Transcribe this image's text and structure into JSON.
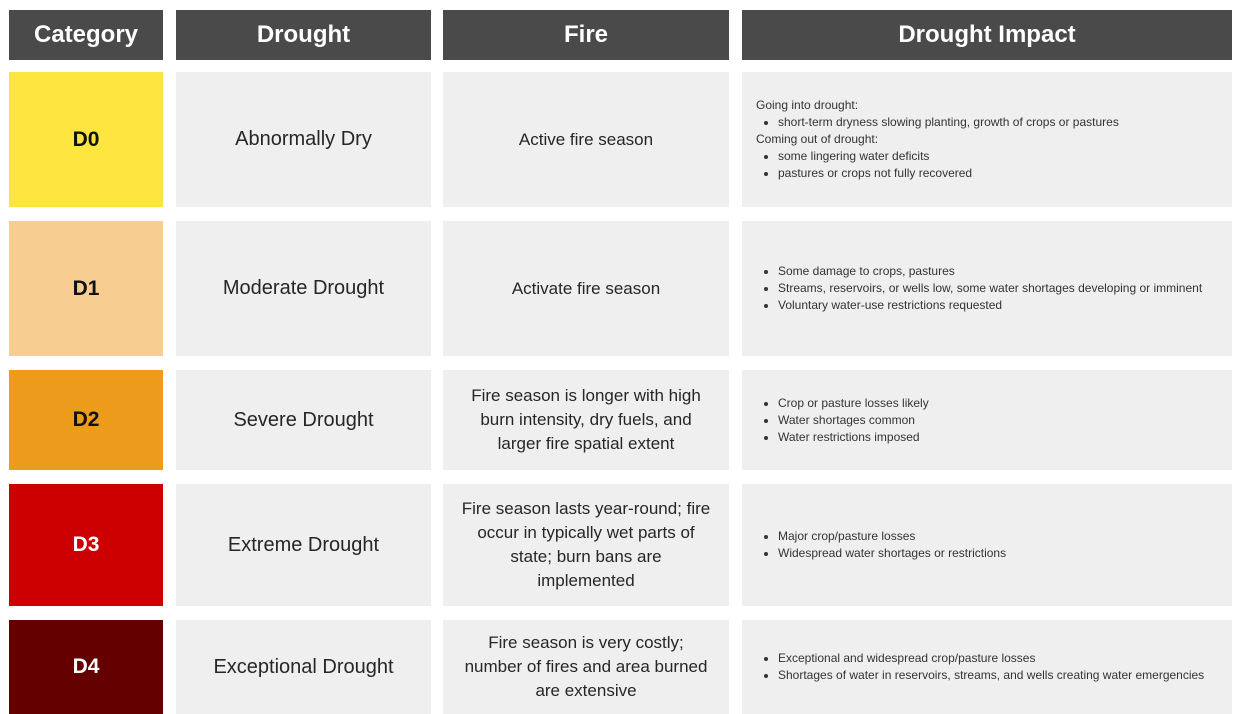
{
  "headers": {
    "category": "Category",
    "drought": "Drought",
    "fire": "Fire",
    "impact": "Drought Impact"
  },
  "rows": [
    {
      "category": "D0",
      "category_color": "#fee53f",
      "category_text_color": "#111111",
      "drought": "Abnormally Dry",
      "fire": "Active fire season",
      "impact": {
        "going_heading": "Going into drought:",
        "going_bullets": [
          "short-term dryness slowing planting, growth of crops or pastures"
        ],
        "coming_heading": "Coming out of drought:",
        "coming_bullets": [
          "some lingering water deficits",
          "pastures or crops not fully recovered"
        ]
      }
    },
    {
      "category": "D1",
      "category_color": "#f8cd91",
      "category_text_color": "#111111",
      "drought": "Moderate Drought",
      "fire": "Activate fire season",
      "impact": {
        "bullets": [
          "Some damage to crops, pastures",
          "Streams, reservoirs, or wells low, some water shortages developing or imminent",
          "Voluntary water-use restrictions requested"
        ]
      }
    },
    {
      "category": "D2",
      "category_color": "#ec9b1b",
      "category_text_color": "#111111",
      "drought": "Severe Drought",
      "fire": "Fire season is longer with high burn intensity, dry fuels, and larger fire spatial extent",
      "impact": {
        "bullets": [
          "Crop or pasture losses likely",
          "Water shortages common",
          "Water restrictions imposed"
        ]
      }
    },
    {
      "category": "D3",
      "category_color": "#cc0000",
      "category_text_color": "#ffffff",
      "drought": "Extreme Drought",
      "fire": "Fire season lasts year-round; fire occur in typically wet parts of state; burn bans are implemented",
      "impact": {
        "bullets": [
          "Major crop/pasture losses",
          "Widespread water shortages or restrictions"
        ]
      }
    },
    {
      "category": "D4",
      "category_color": "#650000",
      "category_text_color": "#ffffff",
      "drought": "Exceptional Drought",
      "fire": "Fire season is very costly; number of fires and area burned are extensive",
      "impact": {
        "bullets": [
          "Exceptional and widespread crop/pasture losses",
          "Shortages of water in reservoirs, streams, and wells creating water emergencies"
        ]
      }
    }
  ]
}
